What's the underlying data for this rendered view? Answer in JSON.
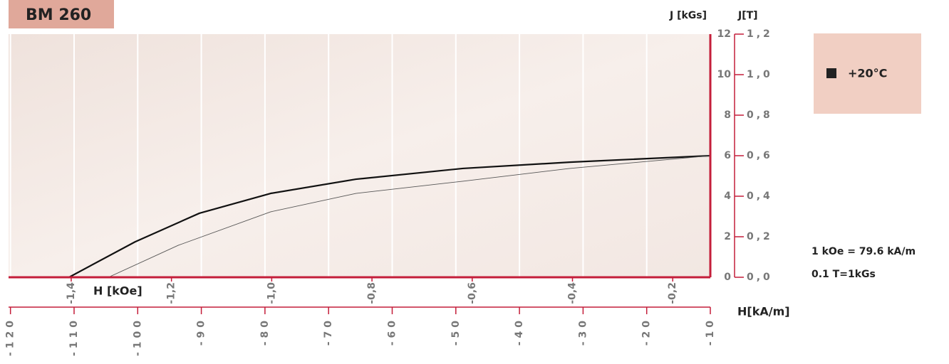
{
  "chart_data": {
    "type": "line",
    "title": "BM 260",
    "y_label": "J [kGs]",
    "y2_label": "J[T]",
    "x2_label": "H [kOe]",
    "x_label": "H[kA/m]",
    "notes": [
      "1 kOe = 79.6 kA/m",
      "0.1 T=1kGs"
    ],
    "legend": {
      "label": "+20°C",
      "color": "#222222"
    },
    "xlim": [
      -120.3,
      -10
    ],
    "xticks": [
      -120,
      -110,
      -100,
      -90,
      -80,
      -70,
      -60,
      -50,
      -40,
      -30,
      -20,
      -10
    ],
    "x2lim": [
      -1.525,
      -0.125
    ],
    "x2ticks": [
      {
        "value": -1.4,
        "label": "-1,4"
      },
      {
        "value": -1.2,
        "label": "-1,2"
      },
      {
        "value": -1.0,
        "label": "-1,0"
      },
      {
        "value": -0.8,
        "label": "-0,8"
      },
      {
        "value": -0.6,
        "label": "-0,6"
      },
      {
        "value": -0.4,
        "label": "-0,4"
      },
      {
        "value": -0.2,
        "label": "-0,2"
      }
    ],
    "ylim": [
      0,
      12
    ],
    "yticks": [
      0,
      2,
      4,
      6,
      8,
      10,
      12
    ],
    "y2lim": [
      0,
      1.2
    ],
    "y2ticks": [
      {
        "value": 0,
        "label": "0,0"
      },
      {
        "value": 0.2,
        "label": "0,2"
      },
      {
        "value": 0.4,
        "label": "0,4"
      },
      {
        "value": 0.6,
        "label": "0,6"
      },
      {
        "value": 0.8,
        "label": "0,8"
      },
      {
        "value": 1.0,
        "label": "1,0"
      },
      {
        "value": 1.2,
        "label": "1,2"
      }
    ],
    "grid": true,
    "axis_color": "#c41e3a",
    "series": [
      {
        "color": "#111111",
        "width": 2.2,
        "x": [
          -110.8,
          -100.4,
          -90.3,
          -79.1,
          -65.7,
          -48.9,
          -32.1,
          -10
        ],
        "values": [
          0,
          1.75,
          3.16,
          4.14,
          4.84,
          5.37,
          5.68,
          6.0
        ]
      },
      {
        "color": "#555555",
        "width": 0.9,
        "x": [
          -104.6,
          -93.6,
          -79.1,
          -65.7,
          -48.9,
          -32.1,
          -10
        ],
        "values": [
          0,
          1.58,
          3.23,
          4.14,
          4.74,
          5.37,
          6.0
        ]
      }
    ]
  }
}
